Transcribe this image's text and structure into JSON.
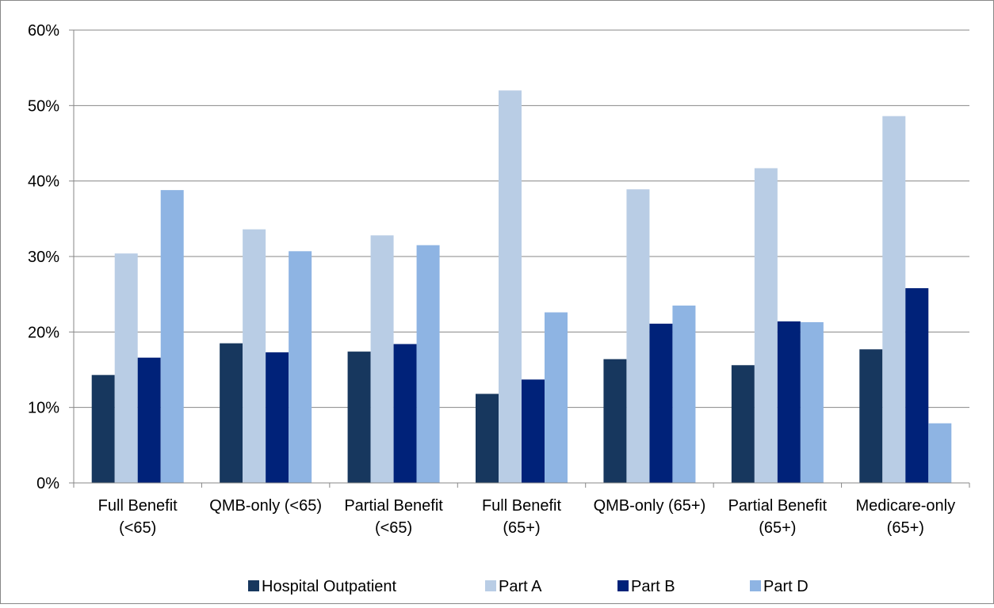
{
  "chart_data": {
    "type": "bar",
    "title": "",
    "xlabel": "",
    "ylabel": "",
    "ylim": [
      0,
      60
    ],
    "y_ticks": [
      {
        "value": 0,
        "label": "0%"
      },
      {
        "value": 10,
        "label": "10%"
      },
      {
        "value": 20,
        "label": "20%"
      },
      {
        "value": 30,
        "label": "30%"
      },
      {
        "value": 40,
        "label": "40%"
      },
      {
        "value": 50,
        "label": "50%"
      },
      {
        "value": 60,
        "label": "60%"
      }
    ],
    "grid": true,
    "legend_position": "bottom",
    "categories": [
      [
        "Full Benefit",
        "(<65)"
      ],
      [
        "QMB-only (<65)"
      ],
      [
        "Partial Benefit",
        "(<65)"
      ],
      [
        "Full Benefit",
        "(65+)"
      ],
      [
        "QMB-only (65+)"
      ],
      [
        "Partial Benefit",
        "(65+)"
      ],
      [
        "Medicare-only",
        "(65+)"
      ]
    ],
    "series": [
      {
        "name": "Hospital Outpatient",
        "color": "#17375e",
        "values": [
          14.3,
          18.5,
          17.4,
          11.8,
          16.4,
          15.6,
          17.7
        ]
      },
      {
        "name": "Part A",
        "color": "#b9cde5",
        "values": [
          30.4,
          33.6,
          32.8,
          52.0,
          38.9,
          41.7,
          48.6
        ]
      },
      {
        "name": "Part B",
        "color": "#002279",
        "values": [
          16.6,
          17.3,
          18.4,
          13.7,
          21.1,
          21.4,
          25.8
        ]
      },
      {
        "name": "Part D",
        "color": "#8eb4e3",
        "values": [
          38.8,
          30.7,
          31.5,
          22.6,
          23.5,
          21.3,
          7.9
        ]
      }
    ]
  }
}
